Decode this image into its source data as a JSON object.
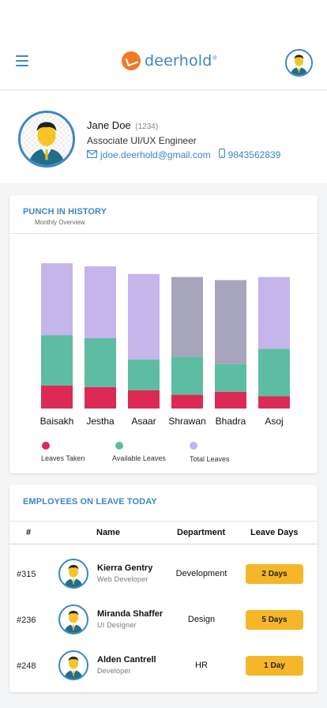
{
  "header": {
    "logo_text": "deerhold",
    "logo_mark": "®"
  },
  "profile": {
    "name": "Jane Doe",
    "employee_id": "(1234)",
    "role": "Associate UI/UX Engineer",
    "email": "jdoe.deerhold@gmail.com",
    "phone": "9843562839"
  },
  "punch_history": {
    "title": "PUNCH IN HISTORY",
    "subtitle": "Monthly Overview"
  },
  "chart_data": {
    "type": "bar",
    "stacked": true,
    "categories": [
      "Baisakh",
      "Jestha",
      "Asaar",
      "Shrawan",
      "Bhadra",
      "Asoj"
    ],
    "series": [
      {
        "name": "Leaves Taken",
        "color": "#dc2a55",
        "values": [
          15,
          14,
          12,
          9,
          11,
          8
        ]
      },
      {
        "name": "Available Leaves",
        "color": "#5cbda3",
        "values": [
          33,
          32,
          20,
          25,
          18,
          31
        ]
      },
      {
        "name": "Total Leaves",
        "color": "#c5b5ea",
        "values": [
          47,
          47,
          56,
          0,
          0,
          47
        ]
      }
    ],
    "extra_colors": {
      "Shrawan": "#a6a5bb",
      "Bhadra": "#a6a5bb"
    },
    "gray_segment_values": [
      0,
      0,
      0,
      52,
      55,
      0
    ],
    "legend": [
      "Leaves Taken",
      "Available Leaves",
      "Total Leaves"
    ],
    "legend_position": "bottom",
    "grid": false
  },
  "leave_today": {
    "title": "EMPLOYEES ON LEAVE TODAY",
    "columns": [
      "#",
      "Name",
      "Department",
      "Leave Days"
    ],
    "rows": [
      {
        "id": "#315",
        "name": "Kierra Gentry",
        "role": "Web Developer",
        "department": "Development",
        "days": "2 Days"
      },
      {
        "id": "#236",
        "name": "Miranda Shaffer",
        "role": "UI Designer",
        "department": "Design",
        "days": "5 Days"
      },
      {
        "id": "#248",
        "name": "Alden Cantrell",
        "role": "Developer",
        "department": "HR",
        "days": "1 Day"
      }
    ]
  },
  "colors": {
    "accent": "#3b86c6",
    "logo": "#f07a2a",
    "badge": "#f5b728"
  }
}
